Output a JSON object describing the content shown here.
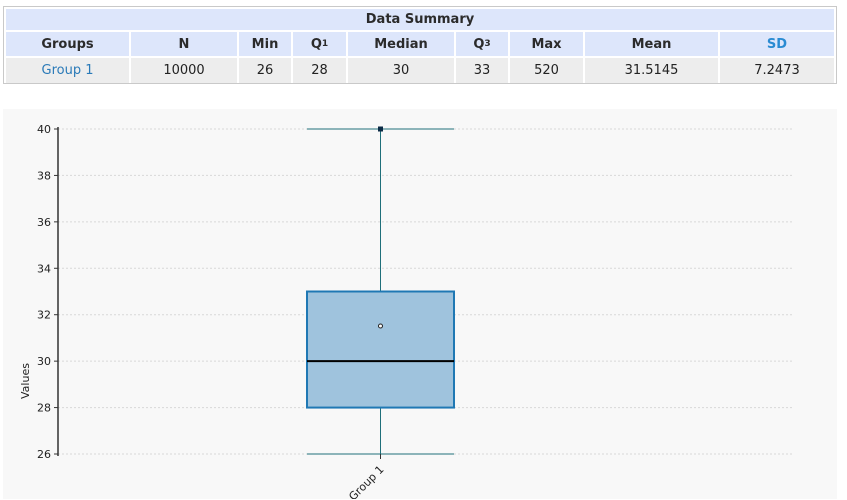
{
  "summary": {
    "title": "Data Summary",
    "headers": {
      "groups": "Groups",
      "n": "N",
      "min": "Min",
      "q1_base": "Q",
      "q1_sub": "1",
      "median": "Median",
      "q3_base": "Q",
      "q3_sub": "3",
      "max": "Max",
      "mean": "Mean",
      "sd": "SD"
    },
    "row": {
      "group": "Group 1",
      "n": "10000",
      "min": "26",
      "q1": "28",
      "median": "30",
      "q3": "33",
      "max": "520",
      "mean": "31.5145",
      "sd": "7.2473"
    }
  },
  "colors": {
    "box_fill": "#9fc3dd",
    "box_stroke": "#1f78b4",
    "whisker": "#1f6f7a",
    "grid": "#d8d8d8",
    "median": "#000000"
  },
  "chart_data": {
    "type": "box",
    "categories": [
      "Group 1"
    ],
    "ylabel": "Values",
    "xlabel": "",
    "ylim": [
      26,
      40
    ],
    "yticks": [
      "26",
      "28",
      "30",
      "32",
      "34",
      "36",
      "38",
      "40"
    ],
    "grid": true,
    "boxes": [
      {
        "name": "Group 1",
        "whisker_low": 26,
        "q1": 28,
        "median": 30,
        "q3": 33,
        "whisker_high": 40,
        "mean": 31.5145,
        "outliers_shown": [
          40
        ]
      }
    ]
  }
}
